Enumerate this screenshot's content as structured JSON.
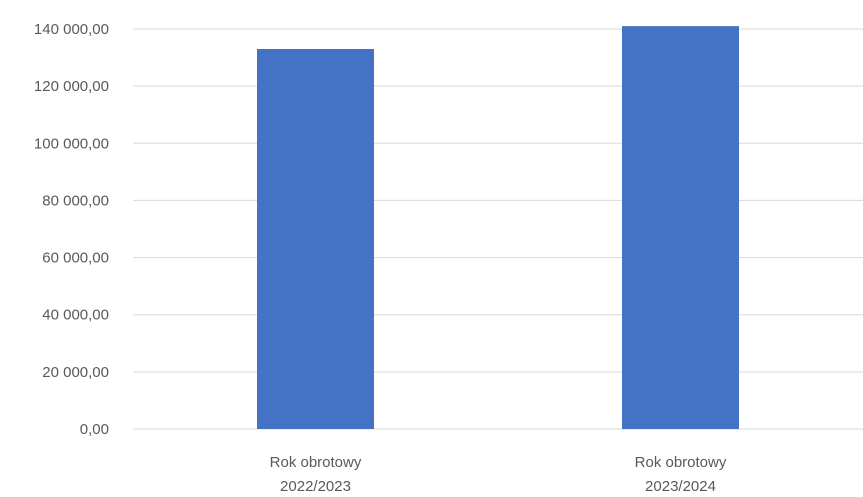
{
  "chart_data": {
    "type": "bar",
    "title": "",
    "xlabel": "",
    "ylabel": "",
    "categories": [
      [
        "Rok obrotowy",
        "2022/2023"
      ],
      [
        "Rok obrotowy",
        "2023/2024"
      ]
    ],
    "series": [
      {
        "values": [
          133000,
          141000
        ],
        "color": "#4472C4"
      }
    ],
    "ylim": [
      0,
      140000
    ],
    "yticks": [
      0,
      20000,
      40000,
      60000,
      80000,
      100000,
      120000,
      140000
    ],
    "ytick_labels": [
      "0,00",
      "20 000,00",
      "40 000,00",
      "60 000,00",
      "80 000,00",
      "100 000,00",
      "120 000,00",
      "140 000,00"
    ],
    "grid": true,
    "legend": "none",
    "colors": {
      "bar": "#4472C4",
      "grid": "#d9d9d9",
      "text": "#595959"
    }
  }
}
